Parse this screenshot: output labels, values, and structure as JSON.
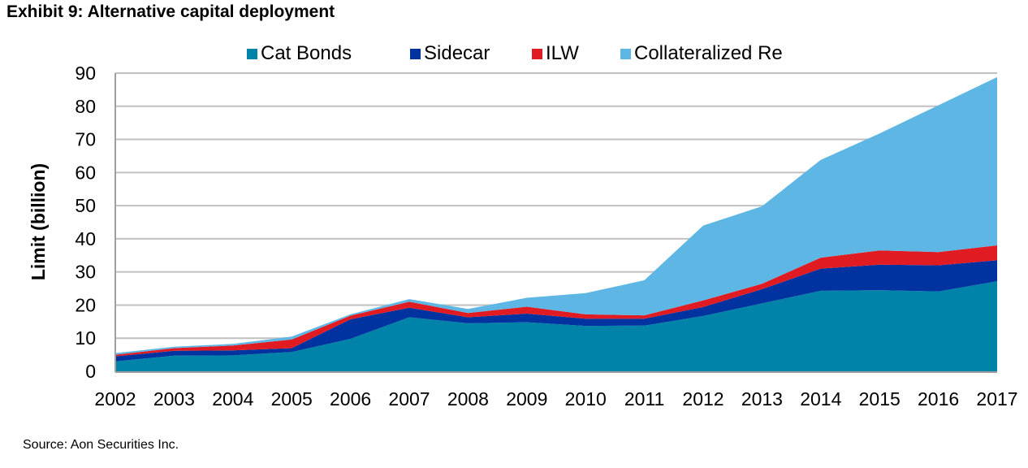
{
  "title": "Exhibit 9: Alternative capital deployment",
  "source": "Source: Aon Securities Inc.",
  "chart_data": {
    "type": "area",
    "stacked": true,
    "title": "Exhibit 9: Alternative capital deployment",
    "xlabel": "",
    "ylabel": "Limit (billion)",
    "ylim": [
      0,
      90
    ],
    "yticks": [
      0,
      10,
      20,
      30,
      40,
      50,
      60,
      70,
      80,
      90
    ],
    "grid": true,
    "legend_position": "top",
    "categories": [
      "2002",
      "2003",
      "2004",
      "2005",
      "2006",
      "2007",
      "2008",
      "2009",
      "2010",
      "2011",
      "2012",
      "2013",
      "2014",
      "2015",
      "2016",
      "2017"
    ],
    "series": [
      {
        "name": "Cat Bonds",
        "color": "#0083A9",
        "values": [
          3.0,
          4.7,
          4.8,
          5.8,
          9.8,
          16.3,
          14.5,
          14.8,
          13.7,
          13.8,
          16.7,
          20.5,
          24.3,
          24.5,
          24.1,
          27.2
        ]
      },
      {
        "name": "Sidecar",
        "color": "#0033A0",
        "values": [
          1.5,
          1.5,
          1.5,
          1.2,
          5.9,
          2.9,
          1.8,
          2.6,
          2.2,
          2.1,
          2.7,
          4.3,
          6.7,
          7.7,
          7.9,
          6.3
        ]
      },
      {
        "name": "ILW",
        "color": "#E11B22",
        "values": [
          0.5,
          0.8,
          1.5,
          2.6,
          1.1,
          1.8,
          1.3,
          2.1,
          1.3,
          1.0,
          2.0,
          1.6,
          3.3,
          4.3,
          4.0,
          4.5
        ]
      },
      {
        "name": "Collateralized Re",
        "color": "#5EB6E4",
        "values": [
          0.5,
          0.4,
          0.5,
          0.9,
          0.4,
          0.8,
          1.2,
          2.7,
          6.4,
          10.6,
          22.6,
          23.4,
          29.5,
          35.3,
          44.3,
          50.8
        ]
      }
    ]
  }
}
